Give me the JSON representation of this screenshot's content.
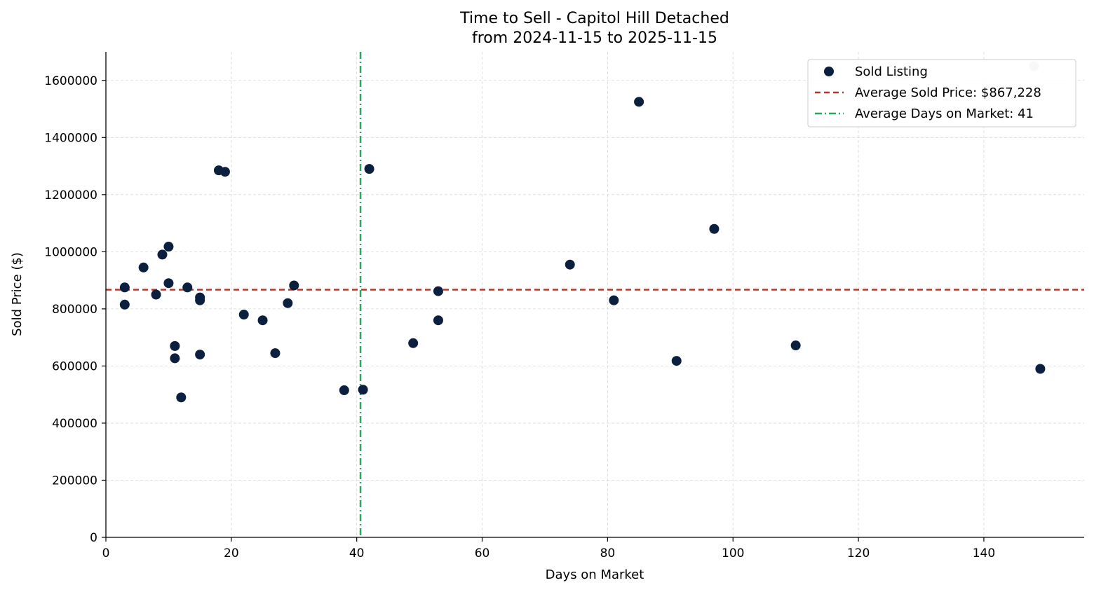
{
  "chart_data": {
    "type": "scatter",
    "title": "Time to Sell - Capitol Hill Detached",
    "subtitle": "from 2024-11-15 to 2025-11-15",
    "xlabel": "Days on Market",
    "ylabel": "Sold Price ($)",
    "xlim": [
      0,
      156
    ],
    "ylim": [
      0,
      1700000
    ],
    "xticks": [
      0,
      20,
      40,
      60,
      80,
      100,
      120,
      140
    ],
    "yticks": [
      0,
      200000,
      400000,
      600000,
      800000,
      1000000,
      1200000,
      1400000,
      1600000
    ],
    "grid": true,
    "legend_position": "top-right",
    "series": [
      {
        "name": "Sold Listing",
        "color": "#0b1f3f",
        "points": [
          {
            "x": 3,
            "y": 875000
          },
          {
            "x": 3,
            "y": 815000
          },
          {
            "x": 6,
            "y": 945000
          },
          {
            "x": 8,
            "y": 850000
          },
          {
            "x": 9,
            "y": 990000
          },
          {
            "x": 10,
            "y": 1018000
          },
          {
            "x": 10,
            "y": 890000
          },
          {
            "x": 11,
            "y": 670000
          },
          {
            "x": 11,
            "y": 627000
          },
          {
            "x": 12,
            "y": 490000
          },
          {
            "x": 13,
            "y": 875000
          },
          {
            "x": 15,
            "y": 840000
          },
          {
            "x": 15,
            "y": 830000
          },
          {
            "x": 15,
            "y": 640000
          },
          {
            "x": 18,
            "y": 1285000
          },
          {
            "x": 19,
            "y": 1280000
          },
          {
            "x": 22,
            "y": 780000
          },
          {
            "x": 25,
            "y": 760000
          },
          {
            "x": 27,
            "y": 645000
          },
          {
            "x": 29,
            "y": 820000
          },
          {
            "x": 30,
            "y": 882000
          },
          {
            "x": 38,
            "y": 515000
          },
          {
            "x": 41,
            "y": 517000
          },
          {
            "x": 42,
            "y": 1290000
          },
          {
            "x": 49,
            "y": 680000
          },
          {
            "x": 53,
            "y": 862000
          },
          {
            "x": 53,
            "y": 760000
          },
          {
            "x": 74,
            "y": 955000
          },
          {
            "x": 81,
            "y": 830000
          },
          {
            "x": 85,
            "y": 1525000
          },
          {
            "x": 91,
            "y": 618000
          },
          {
            "x": 97,
            "y": 1080000
          },
          {
            "x": 110,
            "y": 672000
          },
          {
            "x": 148,
            "y": 1650000,
            "faded": true
          },
          {
            "x": 149,
            "y": 590000
          }
        ]
      }
    ],
    "reference_lines": {
      "avg_price": {
        "value": 867228,
        "label": "Average Sold Price: $867,228",
        "color": "#b03a2e"
      },
      "avg_days": {
        "value": 40.6,
        "label": "Average Days on Market: 41",
        "color": "#27a85a"
      }
    },
    "colors": {
      "faded_point": "#c8ced8",
      "grid": "#d9d9d9"
    }
  }
}
